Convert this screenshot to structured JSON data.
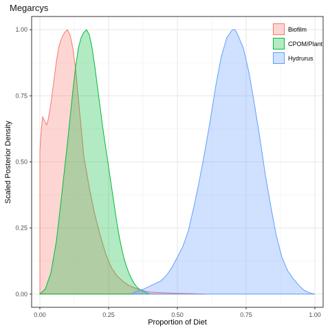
{
  "chart_data": {
    "type": "area",
    "title": "Megarcys",
    "xlabel": "Proportion of Diet",
    "ylabel": "Scaled Posterior Density",
    "xlim": [
      -0.03,
      1.03
    ],
    "ylim": [
      -0.05,
      1.05
    ],
    "x_ticks": [
      0.0,
      0.25,
      0.5,
      0.75,
      1.0
    ],
    "x_tick_labels": [
      "0.00",
      "0.25",
      "0.50",
      "0.75",
      "1.00"
    ],
    "y_ticks": [
      0.0,
      0.25,
      0.5,
      0.75,
      1.0
    ],
    "y_tick_labels": [
      "0.00",
      "0.25",
      "0.50",
      "0.75",
      "1.00"
    ],
    "grid": true,
    "legend_position": "top-right",
    "series": [
      {
        "name": "Biofilm",
        "fill": "#f8766d",
        "stroke": "#f8766d",
        "x": [
          0.0,
          0.005,
          0.01,
          0.015,
          0.02,
          0.025,
          0.03,
          0.04,
          0.05,
          0.06,
          0.07,
          0.08,
          0.09,
          0.1,
          0.11,
          0.12,
          0.13,
          0.14,
          0.15,
          0.16,
          0.18,
          0.2,
          0.22,
          0.24,
          0.26,
          0.28,
          0.3,
          0.32,
          0.34,
          0.36,
          0.38,
          0.4,
          0.45,
          0.5,
          0.55,
          0.6
        ],
        "y": [
          0.54,
          0.62,
          0.67,
          0.66,
          0.65,
          0.64,
          0.66,
          0.72,
          0.8,
          0.88,
          0.94,
          0.97,
          0.99,
          1.0,
          0.98,
          0.93,
          0.85,
          0.74,
          0.63,
          0.52,
          0.4,
          0.3,
          0.22,
          0.15,
          0.1,
          0.07,
          0.05,
          0.035,
          0.025,
          0.018,
          0.012,
          0.008,
          0.005,
          0.003,
          0.002,
          0.0
        ]
      },
      {
        "name": "CPOM/Plant",
        "fill": "#00ba38",
        "stroke": "#00ba38",
        "x": [
          0.0,
          0.02,
          0.04,
          0.06,
          0.08,
          0.1,
          0.11,
          0.12,
          0.13,
          0.14,
          0.15,
          0.16,
          0.17,
          0.18,
          0.19,
          0.2,
          0.21,
          0.22,
          0.23,
          0.24,
          0.25,
          0.26,
          0.27,
          0.28,
          0.29,
          0.3,
          0.31,
          0.32,
          0.33,
          0.34,
          0.35,
          0.36,
          0.38,
          0.4
        ],
        "y": [
          0.0,
          0.02,
          0.08,
          0.2,
          0.38,
          0.57,
          0.67,
          0.77,
          0.86,
          0.93,
          0.97,
          0.99,
          1.0,
          0.98,
          0.93,
          0.86,
          0.78,
          0.7,
          0.62,
          0.55,
          0.48,
          0.41,
          0.34,
          0.27,
          0.21,
          0.16,
          0.12,
          0.09,
          0.065,
          0.045,
          0.03,
          0.02,
          0.008,
          0.0
        ]
      },
      {
        "name": "Hydrurus",
        "fill": "#619cff",
        "stroke": "#619cff",
        "x": [
          0.33,
          0.35,
          0.38,
          0.4,
          0.42,
          0.44,
          0.46,
          0.48,
          0.5,
          0.52,
          0.54,
          0.56,
          0.58,
          0.6,
          0.62,
          0.64,
          0.66,
          0.68,
          0.7,
          0.71,
          0.72,
          0.74,
          0.76,
          0.78,
          0.8,
          0.82,
          0.84,
          0.86,
          0.88,
          0.9,
          0.92,
          0.94,
          0.96,
          0.98,
          1.0
        ],
        "y": [
          0.0,
          0.01,
          0.02,
          0.03,
          0.04,
          0.05,
          0.07,
          0.1,
          0.14,
          0.18,
          0.24,
          0.33,
          0.43,
          0.54,
          0.66,
          0.79,
          0.9,
          0.97,
          1.0,
          1.0,
          0.98,
          0.93,
          0.84,
          0.72,
          0.59,
          0.45,
          0.33,
          0.22,
          0.14,
          0.09,
          0.06,
          0.035,
          0.015,
          0.005,
          0.0
        ]
      }
    ]
  }
}
